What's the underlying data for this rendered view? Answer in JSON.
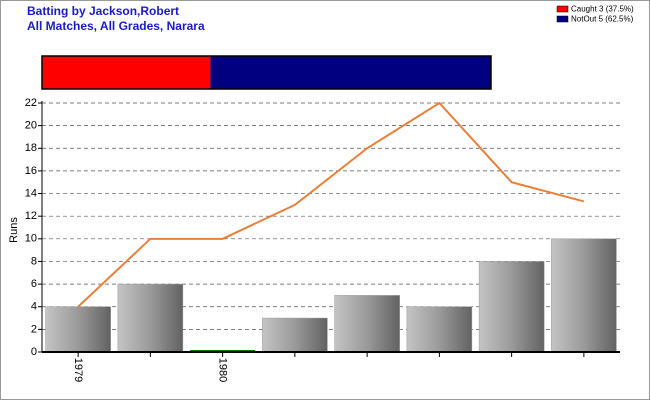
{
  "chart_data": [
    {
      "type": "stacked_bar",
      "title": "Batting by Jackson,Robert",
      "subtitle": "All Matches, All Grades, Narara",
      "series": [
        {
          "name": "Caught 3 (37.5%)",
          "color": "#ff0000",
          "values": [
            3
          ]
        },
        {
          "name": "NotOut 5 (62.5%)",
          "color": "#000080",
          "values": [
            5
          ]
        }
      ]
    },
    {
      "type": "bar",
      "y_label": "Runs",
      "categories": [
        "1979",
        null,
        "1980",
        null,
        null,
        null,
        null,
        null
      ],
      "series": [
        {
          "type": "bar",
          "color": "#999999",
          "zero_color": "#008000",
          "values": [
            4,
            6,
            0,
            3,
            5,
            4,
            8,
            10
          ]
        },
        {
          "type": "line",
          "color": "#e8803a",
          "values": [
            4,
            10,
            10,
            13,
            18,
            22,
            15,
            13.3
          ]
        }
      ],
      "ylim": [
        0,
        22
      ],
      "yticks": [
        0,
        2,
        4,
        6,
        8,
        10,
        12,
        14,
        16,
        18,
        20,
        22
      ],
      "grid": true
    }
  ]
}
